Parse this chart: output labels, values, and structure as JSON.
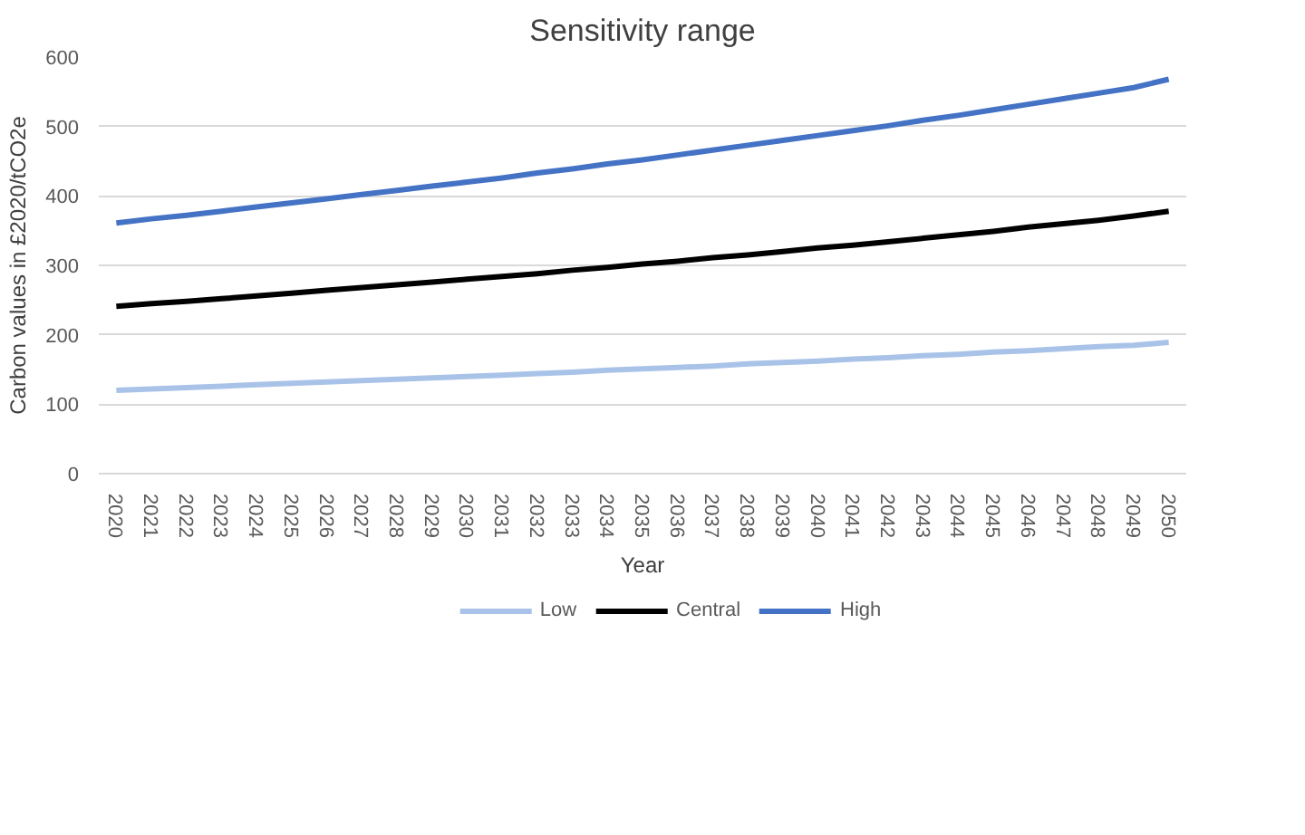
{
  "chart_data": {
    "type": "line",
    "title": "Sensitivity range",
    "xlabel": "Year",
    "ylabel": "Carbon values in £2020/tCO2e",
    "categories": [
      "2020",
      "2021",
      "2022",
      "2023",
      "2024",
      "2025",
      "2026",
      "2027",
      "2028",
      "2029",
      "2030",
      "2031",
      "2032",
      "2033",
      "2034",
      "2035",
      "2036",
      "2037",
      "2038",
      "2039",
      "2040",
      "2041",
      "2042",
      "2043",
      "2044",
      "2045",
      "2046",
      "2047",
      "2048",
      "2049",
      "2050"
    ],
    "series": [
      {
        "name": "Low",
        "color": "#a9c3e8",
        "values": [
          120,
          122,
          124,
          126,
          128,
          130,
          132,
          134,
          136,
          138,
          140,
          142,
          144,
          146,
          149,
          151,
          153,
          155,
          158,
          160,
          162,
          165,
          167,
          170,
          172,
          175,
          177,
          180,
          183,
          185,
          189
        ]
      },
      {
        "name": "Central",
        "color": "#000000",
        "values": [
          241,
          245,
          248,
          252,
          256,
          260,
          264,
          268,
          272,
          276,
          280,
          284,
          288,
          293,
          297,
          302,
          306,
          311,
          315,
          320,
          325,
          329,
          334,
          339,
          344,
          349,
          355,
          360,
          365,
          371,
          378
        ]
      },
      {
        "name": "High",
        "color": "#4472c4",
        "values": [
          361,
          367,
          372,
          378,
          384,
          390,
          396,
          402,
          408,
          414,
          420,
          426,
          433,
          439,
          446,
          452,
          459,
          466,
          473,
          480,
          487,
          494,
          501,
          509,
          516,
          524,
          532,
          540,
          548,
          556,
          568
        ]
      }
    ],
    "ylim": [
      0,
      600
    ],
    "yticks": [
      0,
      100,
      200,
      300,
      400,
      500,
      600
    ],
    "grid": "y",
    "legend": "bottom",
    "marker": "none",
    "line_style": "solid"
  }
}
